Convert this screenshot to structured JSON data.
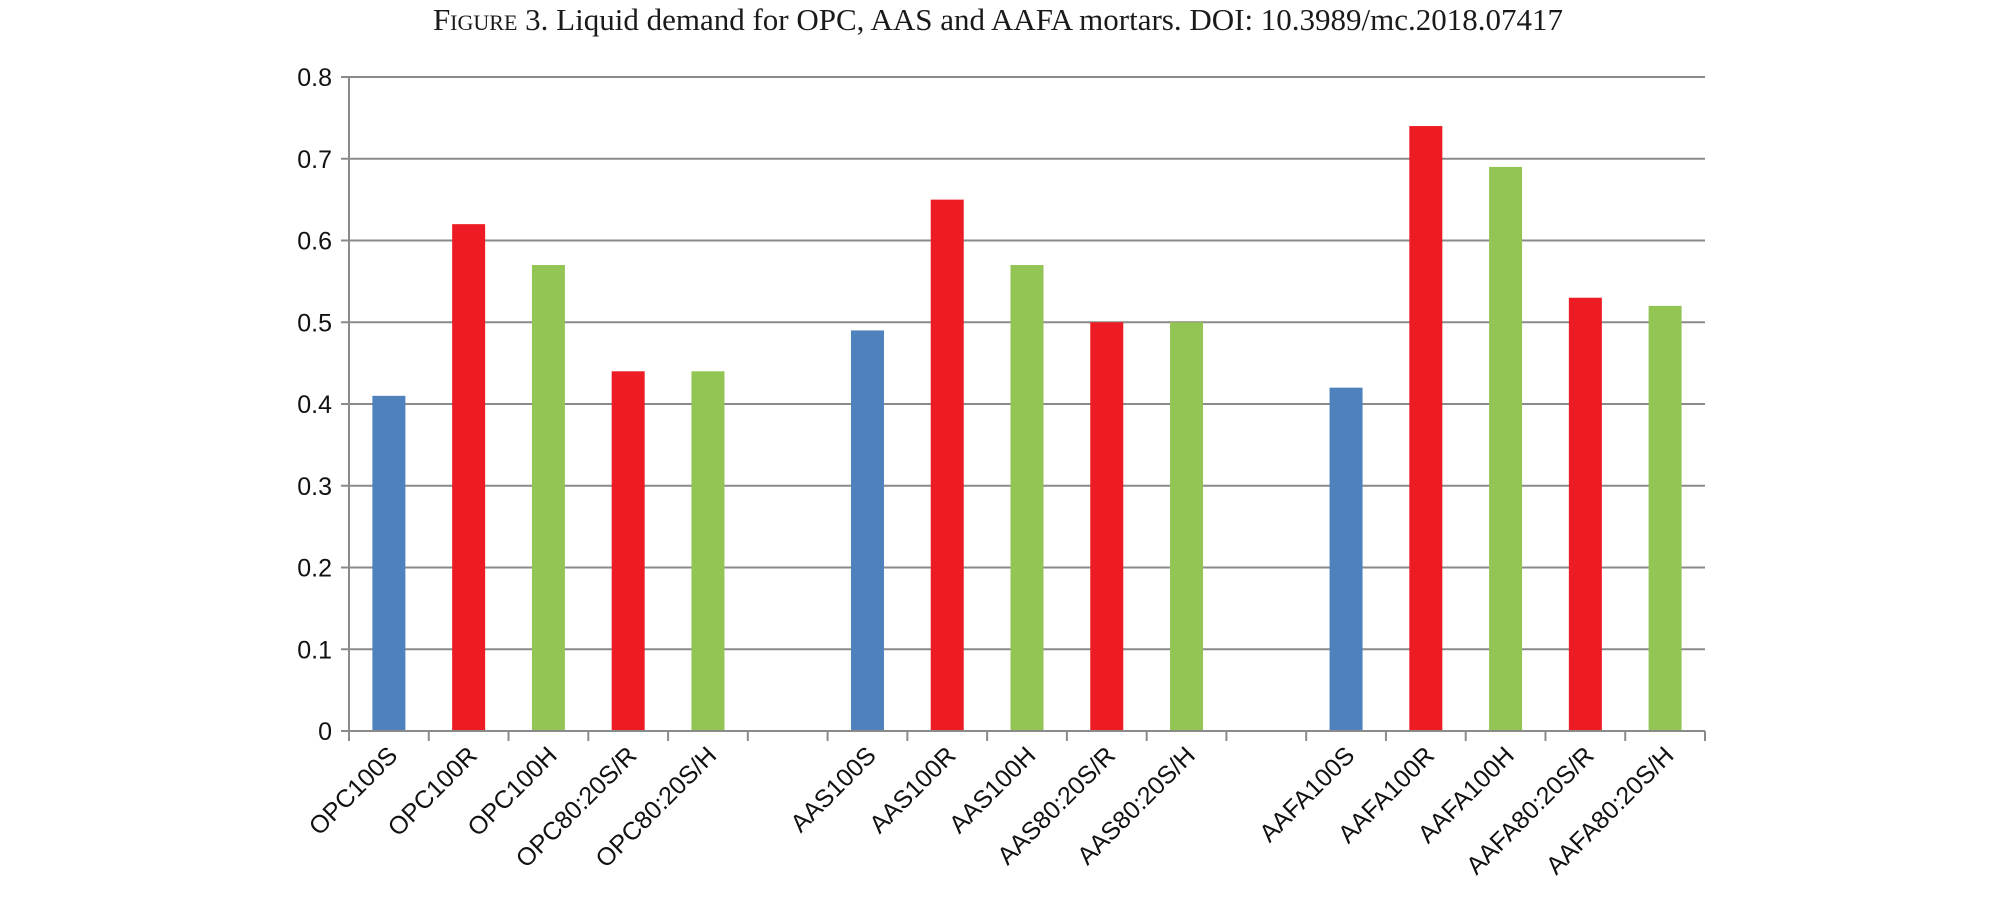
{
  "caption": {
    "label": "Figure 3.",
    "text": "Liquid demand for OPC, AAS and AAFA mortars. DOI: 10.3989/mc.2018.07417"
  },
  "chart_data": {
    "type": "bar",
    "title": "",
    "xlabel": "",
    "ylabel": "",
    "ylim": [
      0,
      0.8
    ],
    "yticks": [
      "0",
      "0.1",
      "0.2",
      "0.3",
      "0.4",
      "0.5",
      "0.6",
      "0.7",
      "0.8"
    ],
    "grid": true,
    "legend": "none",
    "colors": {
      "S": "#4f81bd",
      "R": "#ed1c24",
      "H": "#92c553"
    },
    "categories": [
      "OPC100S",
      "OPC100R",
      "OPC100H",
      "OPC80:20S/R",
      "OPC80:20S/H",
      "",
      "AAS100S",
      "AAS100R",
      "AAS100H",
      "AAS80:20S/R",
      "AAS80:20S/H",
      "",
      "AAFA100S",
      "AAFA100R",
      "AAFA100H",
      "AAFA80:20S/R",
      "AAFA80:20S/H"
    ],
    "values": [
      0.41,
      0.62,
      0.57,
      0.44,
      0.44,
      null,
      0.49,
      0.65,
      0.57,
      0.5,
      0.5,
      null,
      0.42,
      0.74,
      0.69,
      0.53,
      0.52
    ],
    "bar_colors": [
      "S",
      "R",
      "H",
      "R",
      "H",
      "",
      "S",
      "R",
      "H",
      "R",
      "H",
      "",
      "S",
      "R",
      "H",
      "R",
      "H"
    ]
  }
}
